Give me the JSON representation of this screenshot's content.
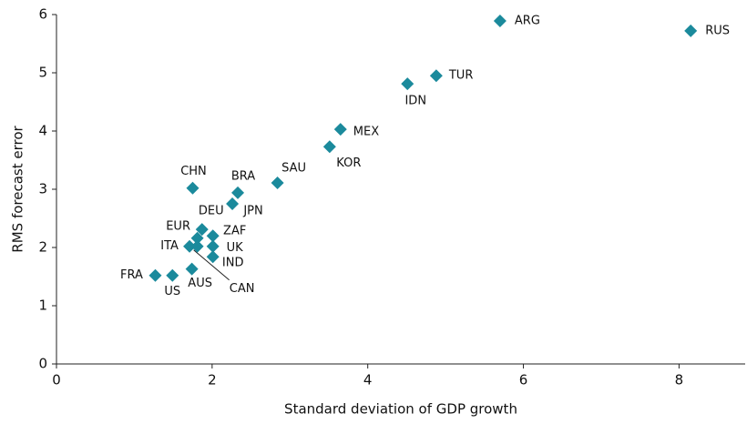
{
  "chart_data": {
    "type": "scatter",
    "x_label": "Standard deviation of GDP growth",
    "y_label": "RMS forecast error",
    "labels": [
      "ARG",
      "RUS",
      "TUR",
      "IDN",
      "MEX",
      "KOR",
      "SAU",
      "BRA",
      "CHN",
      "JPN",
      "DEU",
      "EUR",
      "ZAF",
      "ITA",
      "CAN",
      "UK",
      "IND",
      "AUS",
      "FRA",
      "US"
    ],
    "x": [
      5.7,
      8.15,
      4.88,
      4.51,
      3.65,
      3.51,
      2.84,
      2.33,
      1.75,
      2.26,
      1.87,
      1.81,
      2.01,
      1.71,
      1.81,
      2.01,
      2.01,
      1.74,
      1.27,
      1.49
    ],
    "values": [
      5.89,
      5.72,
      4.95,
      4.81,
      4.03,
      3.73,
      3.11,
      2.94,
      3.02,
      2.75,
      2.31,
      2.16,
      2.2,
      2.02,
      2.02,
      2.02,
      1.84,
      1.63,
      1.52,
      1.52
    ],
    "color": "#1b8a9c",
    "xlim": [
      0,
      8.85
    ],
    "xticks": [
      0,
      2,
      4,
      6,
      8
    ],
    "ylim": [
      0,
      6
    ],
    "yticks": [
      0,
      1,
      2,
      3,
      4,
      5,
      6
    ]
  }
}
